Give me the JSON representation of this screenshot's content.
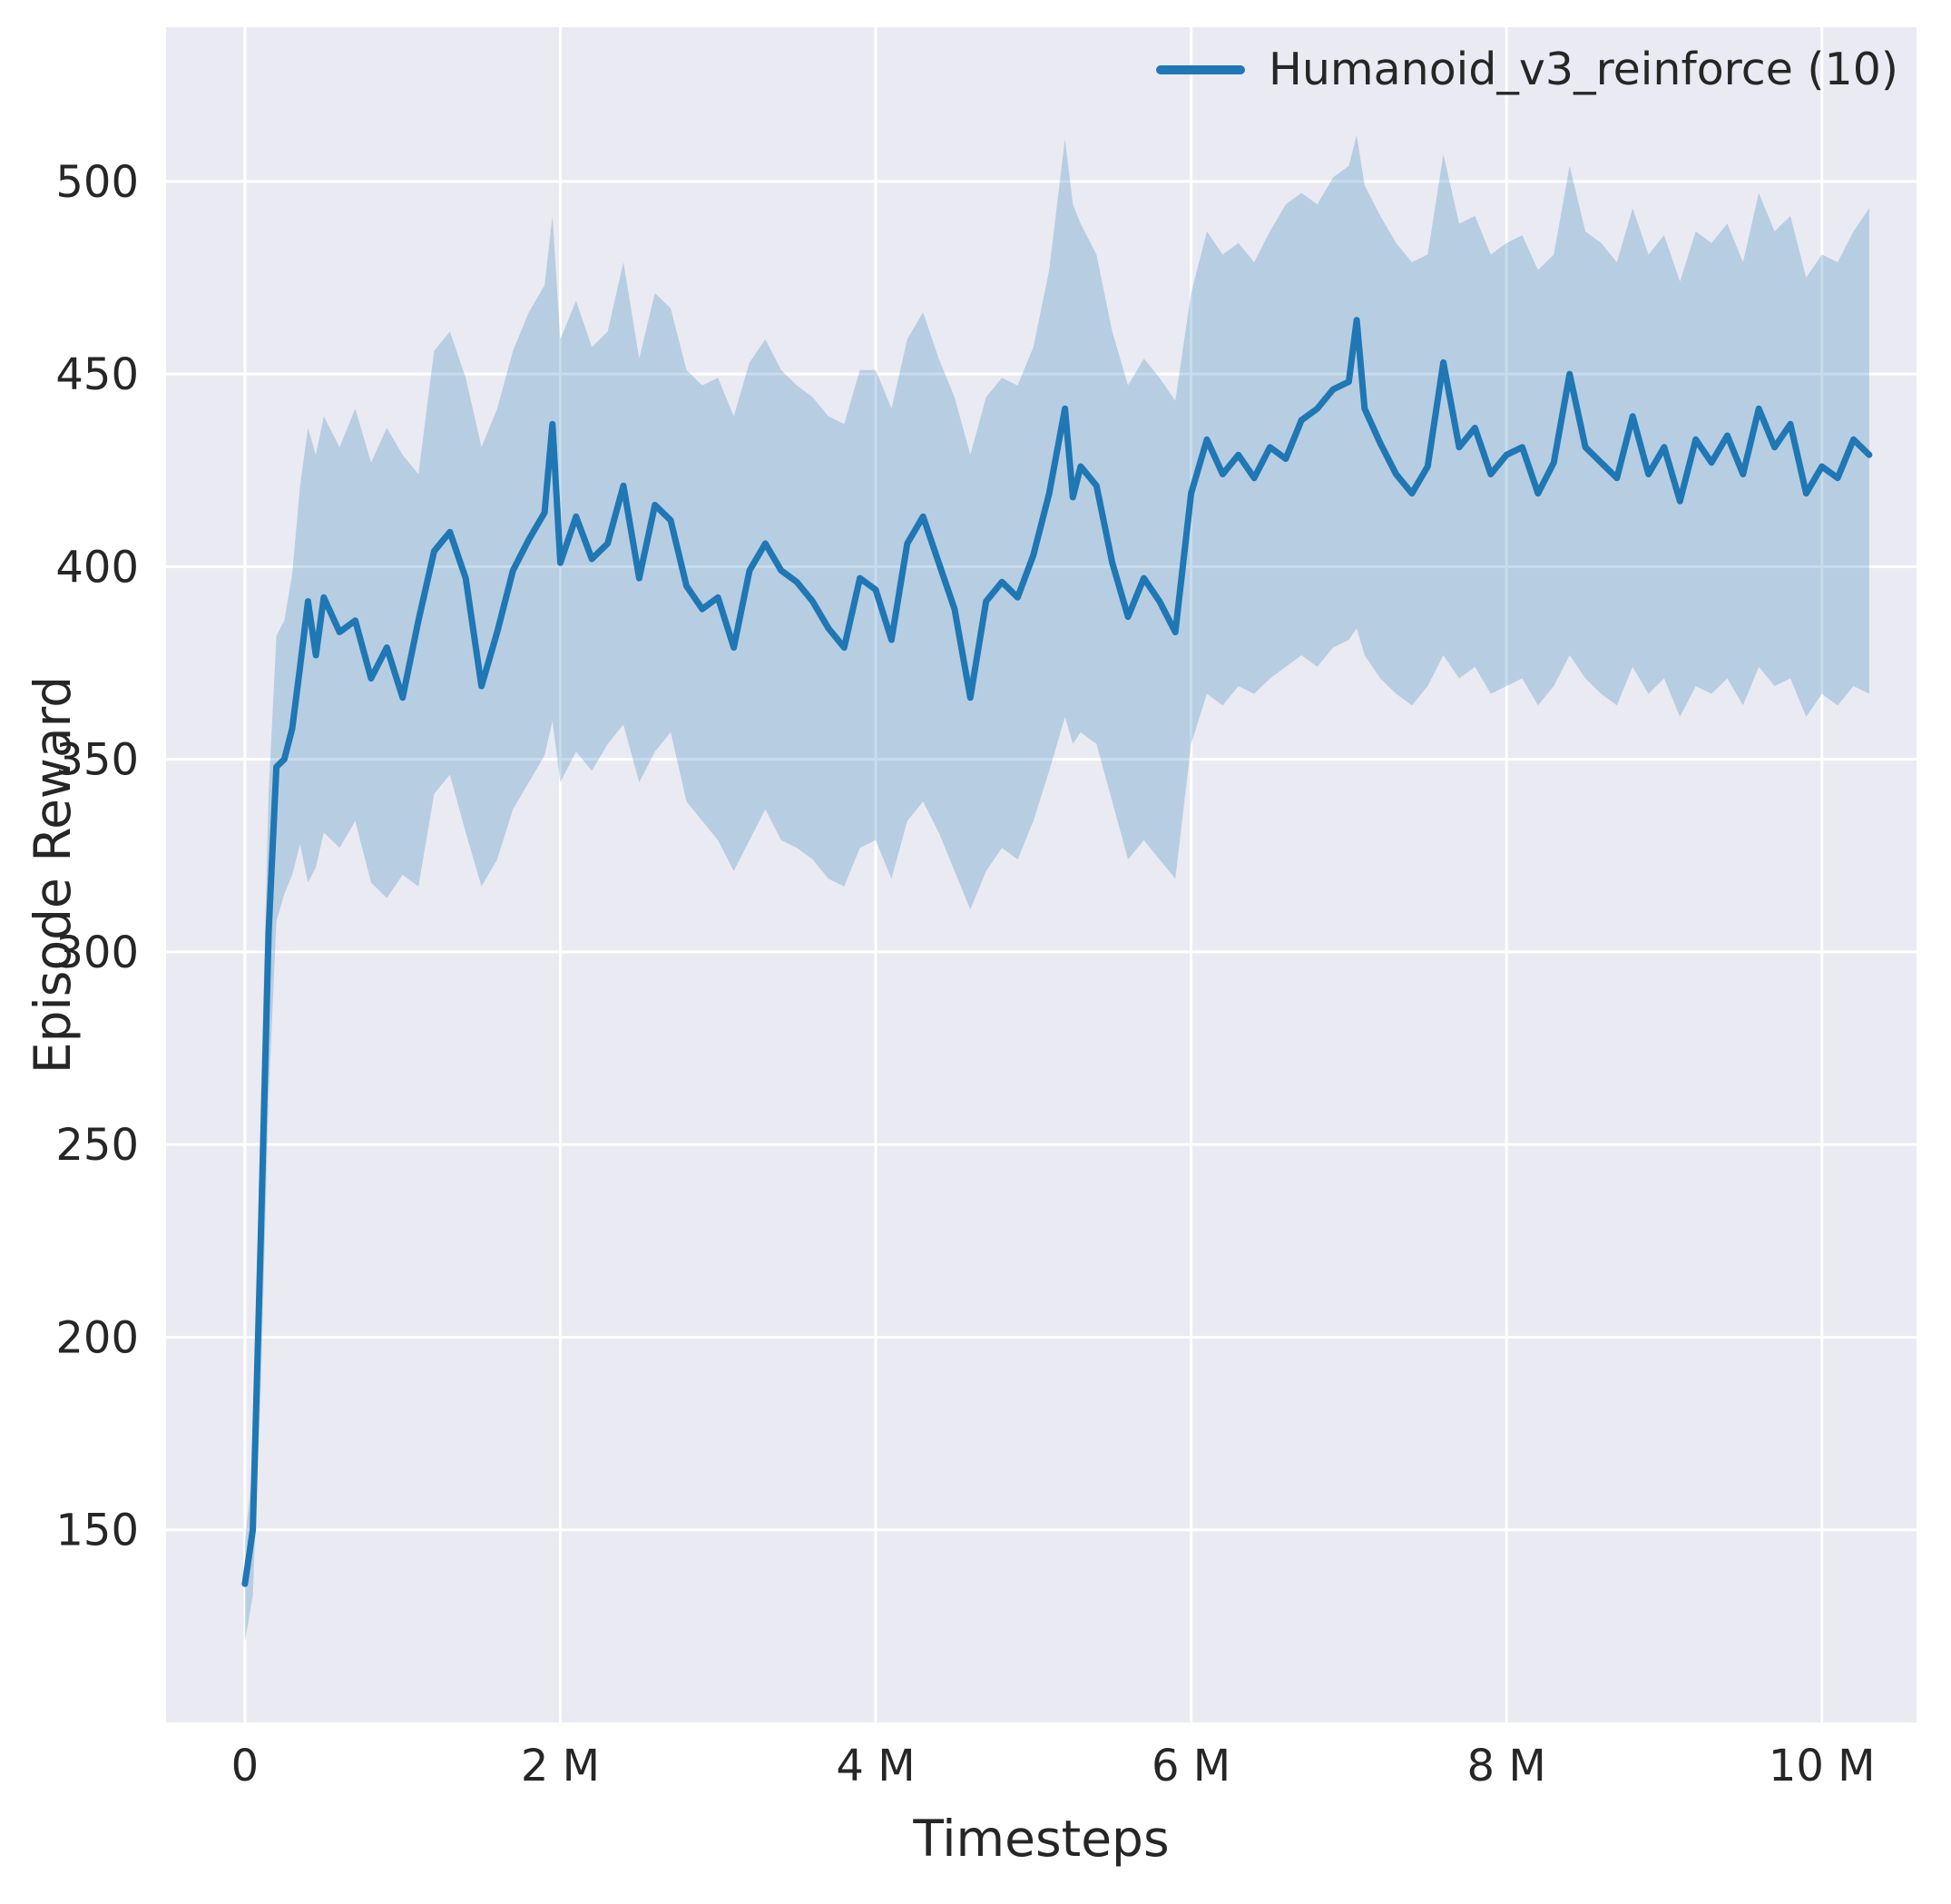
{
  "chart_data": {
    "type": "line",
    "title": "",
    "xlabel": "Timesteps",
    "ylabel": "Episode Reward",
    "grid": true,
    "legend_position": "upper right",
    "legend": [
      {
        "label": "Humanoid_v3_reinforce (10)"
      }
    ],
    "colors": {
      "plot_background": "#eaeaf2",
      "gridline": "#ffffff",
      "line": "#1f77b4",
      "band": "#1f77b4",
      "band_opacity": 0.25,
      "text": "#262626"
    },
    "xlim": [
      -0.5,
      10.6
    ],
    "ylim": [
      100,
      540
    ],
    "x_units": "millions of timesteps",
    "xticks": {
      "values": [
        0,
        2,
        4,
        6,
        8,
        10
      ],
      "labels": [
        "0",
        "2 M",
        "4 M",
        "6 M",
        "8 M",
        "10 M"
      ]
    },
    "yticks": {
      "values": [
        150,
        200,
        250,
        300,
        350,
        400,
        450,
        500
      ],
      "labels": [
        "150",
        "200",
        "250",
        "300",
        "350",
        "400",
        "450",
        "500"
      ]
    },
    "series": [
      {
        "name": "Humanoid_v3_reinforce (10)",
        "x": [
          0,
          0.05,
          0.1,
          0.15,
          0.2,
          0.25,
          0.3,
          0.35,
          0.4,
          0.45,
          0.5,
          0.6,
          0.7,
          0.8,
          0.9,
          1.0,
          1.1,
          1.2,
          1.3,
          1.4,
          1.5,
          1.6,
          1.7,
          1.8,
          1.9,
          1.95,
          2.0,
          2.1,
          2.2,
          2.3,
          2.4,
          2.5,
          2.6,
          2.7,
          2.8,
          2.9,
          3.0,
          3.1,
          3.2,
          3.3,
          3.4,
          3.5,
          3.6,
          3.7,
          3.8,
          3.9,
          4.0,
          4.1,
          4.2,
          4.3,
          4.4,
          4.5,
          4.6,
          4.7,
          4.8,
          4.9,
          5.0,
          5.1,
          5.2,
          5.25,
          5.3,
          5.4,
          5.5,
          5.6,
          5.7,
          5.8,
          5.9,
          6.0,
          6.1,
          6.2,
          6.3,
          6.4,
          6.5,
          6.6,
          6.7,
          6.8,
          6.9,
          7.0,
          7.05,
          7.1,
          7.2,
          7.3,
          7.4,
          7.5,
          7.6,
          7.7,
          7.8,
          7.9,
          8.0,
          8.1,
          8.2,
          8.3,
          8.4,
          8.5,
          8.6,
          8.7,
          8.8,
          8.9,
          9.0,
          9.1,
          9.2,
          9.3,
          9.4,
          9.5,
          9.6,
          9.7,
          9.8,
          9.9,
          10.0,
          10.1,
          10.2,
          10.3
        ],
        "mean": [
          136,
          150,
          225,
          305,
          348,
          350,
          358,
          374,
          391,
          377,
          392,
          383,
          386,
          371,
          379,
          366,
          386,
          404,
          409,
          397,
          369,
          383,
          399,
          407,
          414,
          437,
          401,
          413,
          402,
          406,
          421,
          397,
          416,
          412,
          395,
          389,
          392,
          379,
          399,
          406,
          399,
          396,
          391,
          384,
          379,
          397,
          394,
          381,
          406,
          413,
          401,
          389,
          366,
          391,
          396,
          392,
          403,
          419,
          441,
          418,
          426,
          421,
          401,
          387,
          397,
          391,
          383,
          419,
          433,
          424,
          429,
          423,
          431,
          428,
          438,
          441,
          446,
          448,
          464,
          441,
          432,
          424,
          419,
          426,
          453,
          431,
          436,
          424,
          429,
          431,
          419,
          427,
          450,
          431,
          427,
          423,
          439,
          424,
          431,
          417,
          433,
          427,
          434,
          424,
          441,
          431,
          437,
          419,
          426,
          423,
          433,
          429
        ],
        "band_lower": [
          121,
          133,
          186,
          262,
          308,
          315,
          320,
          328,
          318,
          322,
          331,
          327,
          334,
          318,
          314,
          320,
          317,
          341,
          346,
          331,
          317,
          324,
          337,
          344,
          351,
          360,
          344,
          352,
          347,
          354,
          359,
          344,
          352,
          357,
          339,
          334,
          329,
          321,
          329,
          337,
          329,
          327,
          324,
          319,
          317,
          327,
          329,
          319,
          334,
          339,
          331,
          321,
          311,
          321,
          327,
          324,
          334,
          347,
          361,
          354,
          357,
          354,
          339,
          324,
          329,
          324,
          319,
          354,
          367,
          364,
          369,
          367,
          371,
          374,
          377,
          374,
          379,
          381,
          384,
          377,
          371,
          367,
          364,
          369,
          377,
          371,
          374,
          367,
          369,
          371,
          364,
          369,
          377,
          371,
          367,
          364,
          374,
          367,
          371,
          361,
          369,
          367,
          371,
          364,
          374,
          369,
          371,
          361,
          367,
          364,
          369,
          367
        ],
        "band_upper": [
          147,
          166,
          261,
          341,
          382,
          386,
          398,
          421,
          436,
          429,
          439,
          431,
          441,
          427,
          436,
          429,
          424,
          456,
          461,
          449,
          431,
          441,
          456,
          466,
          473,
          491,
          459,
          469,
          457,
          461,
          479,
          454,
          471,
          467,
          451,
          447,
          449,
          439,
          453,
          459,
          451,
          447,
          444,
          439,
          437,
          451,
          451,
          441,
          459,
          466,
          454,
          444,
          429,
          444,
          449,
          447,
          457,
          477,
          511,
          494,
          489,
          481,
          461,
          447,
          454,
          449,
          443,
          471,
          487,
          481,
          484,
          479,
          487,
          494,
          497,
          494,
          501,
          504,
          512,
          499,
          491,
          484,
          479,
          481,
          507,
          489,
          491,
          481,
          484,
          486,
          477,
          481,
          504,
          487,
          484,
          479,
          493,
          481,
          486,
          474,
          487,
          484,
          489,
          479,
          497,
          487,
          491,
          475,
          481,
          479,
          487,
          493
        ]
      }
    ]
  }
}
